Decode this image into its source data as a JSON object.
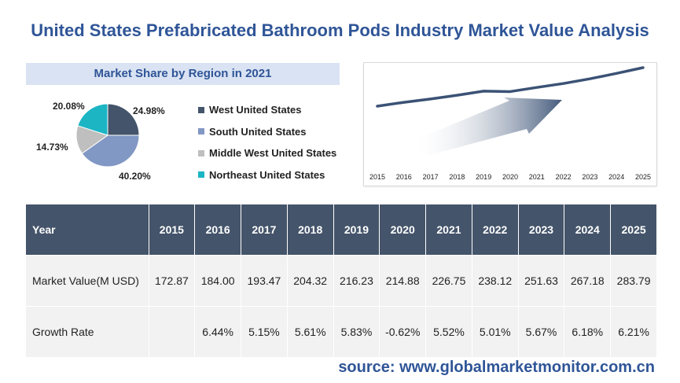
{
  "title": "United States Prefabricated Bathroom Pods Industry Market Value Analysis",
  "source": "source: www.globalmarketmonitor.com.cn",
  "chart_data": [
    {
      "type": "pie",
      "title": "Market Share by Region in 2021",
      "slices": [
        {
          "label": "West United States",
          "value": 24.98,
          "display": "24.98%",
          "color": "#44546a"
        },
        {
          "label": "South United States",
          "value": 40.2,
          "display": "40.20%",
          "color": "#8197c4"
        },
        {
          "label": "Middle West United States",
          "value": 14.73,
          "display": "14.73%",
          "color": "#bfbfbf"
        },
        {
          "label": "Northeast United States",
          "value": 20.08,
          "display": "20.08%",
          "color": "#1bb5c4"
        }
      ]
    },
    {
      "type": "line",
      "x": [
        "2015",
        "2016",
        "2017",
        "2018",
        "2019",
        "2020",
        "2021",
        "2022",
        "2023",
        "2024",
        "2025"
      ],
      "values": [
        172.87,
        184.0,
        193.47,
        204.32,
        216.23,
        214.88,
        226.75,
        238.12,
        251.63,
        267.18,
        283.79
      ],
      "line_color": "#3b5275",
      "grid": false
    },
    {
      "type": "table",
      "columns": [
        "Year",
        "2015",
        "2016",
        "2017",
        "2018",
        "2019",
        "2020",
        "2021",
        "2022",
        "2023",
        "2024",
        "2025"
      ],
      "rows": [
        [
          "Market Value(M USD)",
          "172.87",
          "184.00",
          "193.47",
          "204.32",
          "216.23",
          "214.88",
          "226.75",
          "238.12",
          "251.63",
          "267.18",
          "283.79"
        ],
        [
          "Growth Rate",
          "",
          "6.44%",
          "5.15%",
          "5.61%",
          "5.83%",
          "-0.62%",
          "5.52%",
          "5.01%",
          "5.67%",
          "6.18%",
          "6.21%"
        ]
      ]
    }
  ]
}
